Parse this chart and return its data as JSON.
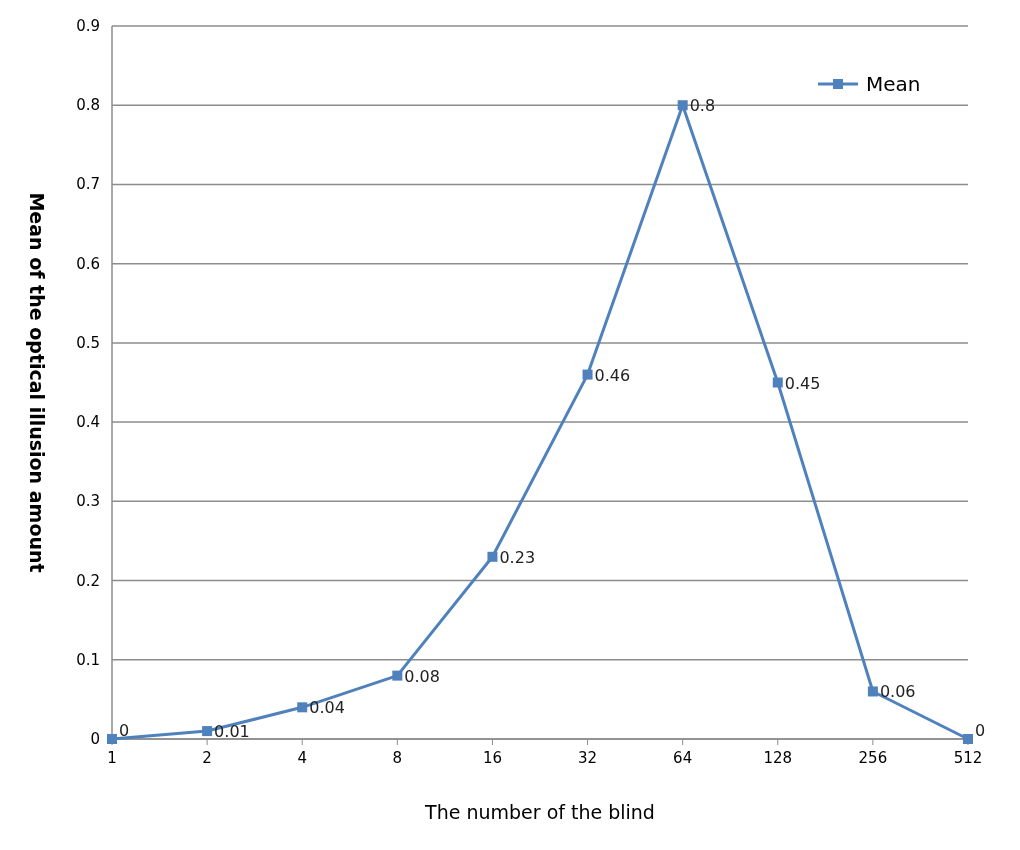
{
  "chart_data": {
    "type": "line",
    "xlabel": "The number of the blind",
    "ylabel": "Mean of the optical illusion amount",
    "categories": [
      "1",
      "2",
      "4",
      "8",
      "16",
      "32",
      "64",
      "128",
      "256",
      "512"
    ],
    "series": [
      {
        "name": "Mean",
        "color": "#4f81bd",
        "values": [
          0,
          0.01,
          0.04,
          0.08,
          0.23,
          0.46,
          0.8,
          0.45,
          0.06,
          0
        ]
      }
    ],
    "ylim": [
      0,
      0.9
    ],
    "yticks": [
      0,
      0.1,
      0.2,
      0.3,
      0.4,
      0.5,
      0.6,
      0.7,
      0.8,
      0.9
    ],
    "grid": "y",
    "legend": "top right",
    "marker": "square",
    "line_style": "solid",
    "data_labels": true
  }
}
